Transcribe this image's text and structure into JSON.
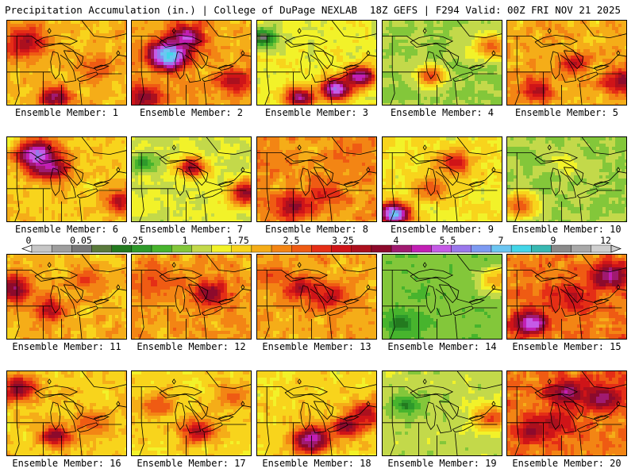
{
  "header": {
    "title": "Precipitation Accumulation (in.) | College of DuPage NEXLAB",
    "run_info": "18Z GEFS | F294 Valid: 00Z FRI NOV 21 2025"
  },
  "colors": {
    "palette": [
      "#c6c6c6",
      "#9e9e9e",
      "#787878",
      "#5a7a3c",
      "#237a1f",
      "#2e9a2b",
      "#47b42d",
      "#83c73a",
      "#c3d94a",
      "#f2f229",
      "#f8d41c",
      "#f5ad18",
      "#f38514",
      "#ef5b13",
      "#e52e16",
      "#cf1418",
      "#ac101e",
      "#8d0a2c",
      "#a01a70",
      "#c21fb4",
      "#c55be6",
      "#9a78ec",
      "#7d9af2",
      "#6cc6f2",
      "#43d6e8",
      "#38b8b2",
      "#8a8a8a",
      "#a8a8a8",
      "#cfcfcf"
    ]
  },
  "colorbar": {
    "ticks": [
      "0",
      "0.05",
      "0.25",
      "1",
      "1.75",
      "2.5",
      "3.25",
      "4",
      "5.5",
      "7",
      "9",
      "12"
    ]
  },
  "chart_data": {
    "type": "heatmap",
    "title": "Precipitation Accumulation (in.)",
    "subtitle": "18Z GEFS | F294 Valid: 00Z FRI NOV 21 2025",
    "units": "in.",
    "colorbar_ticks": [
      0,
      0.05,
      0.25,
      1,
      1.75,
      2.5,
      3.25,
      4,
      5.5,
      7,
      9,
      12
    ],
    "panels": [
      {
        "label": "Ensemble Member: 1",
        "regime": "wet-moderate",
        "seed": 11,
        "base": 1.3,
        "blobs": [
          [
            0.15,
            0.25,
            2.8,
            0.12
          ],
          [
            0.4,
            0.9,
            3.4,
            0.08
          ],
          [
            0.75,
            0.55,
            2.0,
            0.1
          ]
        ]
      },
      {
        "label": "Ensemble Member: 2",
        "regime": "wet-heavy",
        "seed": 12,
        "base": 1.4,
        "blobs": [
          [
            0.3,
            0.4,
            6.5,
            0.1
          ],
          [
            0.45,
            0.2,
            4.0,
            0.1
          ],
          [
            0.1,
            0.9,
            3.0,
            0.1
          ],
          [
            0.85,
            0.7,
            2.6,
            0.1
          ]
        ]
      },
      {
        "label": "Ensemble Member: 3",
        "regime": "band-heavy",
        "seed": 13,
        "base": 0.9,
        "blobs": [
          [
            0.65,
            0.8,
            4.5,
            0.08
          ],
          [
            0.85,
            0.65,
            4.0,
            0.08
          ],
          [
            0.35,
            0.9,
            3.5,
            0.08
          ],
          [
            0.05,
            0.2,
            0.03,
            0.1
          ]
        ]
      },
      {
        "label": "Ensemble Member: 4",
        "regime": "dry",
        "seed": 14,
        "base": 0.6,
        "blobs": [
          [
            0.4,
            0.65,
            2.0,
            0.08
          ],
          [
            0.9,
            0.3,
            1.8,
            0.1
          ]
        ]
      },
      {
        "label": "Ensemble Member: 5",
        "regime": "wet-moderate",
        "seed": 15,
        "base": 1.4,
        "blobs": [
          [
            0.55,
            0.5,
            2.6,
            0.08
          ],
          [
            0.95,
            0.7,
            3.0,
            0.1
          ],
          [
            0.25,
            0.8,
            2.5,
            0.1
          ]
        ]
      },
      {
        "label": "Ensemble Member: 6",
        "regime": "wet-moderate",
        "seed": 16,
        "base": 1.2,
        "blobs": [
          [
            0.25,
            0.2,
            4.8,
            0.1
          ],
          [
            0.35,
            0.35,
            3.8,
            0.1
          ],
          [
            0.95,
            0.75,
            2.6,
            0.1
          ]
        ]
      },
      {
        "label": "Ensemble Member: 7",
        "regime": "dry",
        "seed": 17,
        "base": 0.8,
        "blobs": [
          [
            0.5,
            0.35,
            2.8,
            0.08
          ],
          [
            0.95,
            0.65,
            2.8,
            0.1
          ],
          [
            0.1,
            0.3,
            0.2,
            0.08
          ]
        ]
      },
      {
        "label": "Ensemble Member: 8",
        "regime": "wet-moderate",
        "seed": 18,
        "base": 1.5,
        "blobs": [
          [
            0.3,
            0.8,
            3.0,
            0.1
          ],
          [
            0.55,
            0.65,
            2.2,
            0.1
          ],
          [
            0.75,
            0.2,
            1.8,
            0.12
          ]
        ]
      },
      {
        "label": "Ensemble Member: 9",
        "regime": "mixed",
        "seed": 19,
        "base": 1.0,
        "blobs": [
          [
            0.1,
            0.9,
            5.5,
            0.08
          ],
          [
            0.6,
            0.3,
            2.4,
            0.1
          ],
          [
            0.4,
            0.6,
            2.0,
            0.1
          ]
        ]
      },
      {
        "label": "Ensemble Member: 10",
        "regime": "dry",
        "seed": 20,
        "base": 0.6,
        "blobs": [
          [
            0.1,
            0.8,
            2.0,
            0.1
          ],
          [
            0.5,
            0.3,
            0.9,
            0.1
          ]
        ]
      },
      {
        "label": "Ensemble Member: 11",
        "regime": "wet-moderate",
        "seed": 21,
        "base": 1.3,
        "blobs": [
          [
            0.05,
            0.4,
            3.2,
            0.1
          ],
          [
            0.35,
            0.65,
            2.6,
            0.1
          ],
          [
            0.65,
            0.3,
            2.0,
            0.1
          ]
        ]
      },
      {
        "label": "Ensemble Member: 12",
        "regime": "wet-moderate",
        "seed": 22,
        "base": 1.5,
        "blobs": [
          [
            0.65,
            0.45,
            3.0,
            0.1
          ],
          [
            0.2,
            0.3,
            2.0,
            0.12
          ]
        ]
      },
      {
        "label": "Ensemble Member: 13",
        "regime": "wet-moderate",
        "seed": 23,
        "base": 1.4,
        "blobs": [
          [
            0.35,
            0.4,
            2.8,
            0.1
          ],
          [
            0.6,
            0.5,
            2.6,
            0.1
          ],
          [
            0.1,
            0.25,
            2.0,
            0.1
          ]
        ]
      },
      {
        "label": "Ensemble Member: 14",
        "regime": "dry",
        "seed": 24,
        "base": 0.45,
        "blobs": [
          [
            0.95,
            0.3,
            1.4,
            0.1
          ],
          [
            0.15,
            0.8,
            0.12,
            0.1
          ]
        ]
      },
      {
        "label": "Ensemble Member: 15",
        "regime": "wet-heavy",
        "seed": 25,
        "base": 1.7,
        "blobs": [
          [
            0.85,
            0.25,
            3.6,
            0.1
          ],
          [
            0.2,
            0.8,
            4.8,
            0.08
          ],
          [
            0.55,
            0.5,
            2.5,
            0.12
          ]
        ]
      },
      {
        "label": "Ensemble Member: 16",
        "regime": "wet-moderate",
        "seed": 26,
        "base": 1.2,
        "blobs": [
          [
            0.1,
            0.2,
            3.0,
            0.1
          ],
          [
            0.4,
            0.75,
            3.2,
            0.08
          ],
          [
            0.7,
            0.6,
            2.0,
            0.1
          ]
        ]
      },
      {
        "label": "Ensemble Member: 17",
        "regime": "mixed",
        "seed": 27,
        "base": 1.1,
        "blobs": [
          [
            0.55,
            0.7,
            2.6,
            0.1
          ],
          [
            0.2,
            0.4,
            2.0,
            0.1
          ],
          [
            0.85,
            0.3,
            1.8,
            0.1
          ]
        ]
      },
      {
        "label": "Ensemble Member: 18",
        "regime": "band-heavy",
        "seed": 28,
        "base": 1.1,
        "blobs": [
          [
            0.45,
            0.8,
            3.8,
            0.1
          ],
          [
            0.75,
            0.65,
            3.2,
            0.08
          ],
          [
            0.9,
            0.5,
            2.8,
            0.1
          ]
        ]
      },
      {
        "label": "Ensemble Member: 19",
        "regime": "dry",
        "seed": 29,
        "base": 0.7,
        "blobs": [
          [
            0.2,
            0.4,
            0.15,
            0.1
          ],
          [
            0.9,
            0.55,
            2.0,
            0.1
          ]
        ]
      },
      {
        "label": "Ensemble Member: 20",
        "regime": "wet-heavy",
        "seed": 30,
        "base": 1.7,
        "blobs": [
          [
            0.5,
            0.25,
            3.6,
            0.1
          ],
          [
            0.8,
            0.3,
            3.4,
            0.1
          ],
          [
            0.2,
            0.7,
            2.8,
            0.1
          ],
          [
            0.4,
            0.6,
            2.6,
            0.1
          ]
        ]
      }
    ]
  }
}
